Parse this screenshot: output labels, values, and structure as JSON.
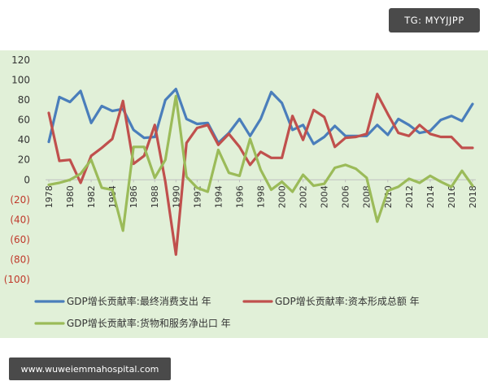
{
  "tag_label": "TG: MYYJJPP",
  "watermark_text": "www.wuweiemmahospital.com",
  "colors": {
    "panel_bg": "#e1f0d8",
    "negative_tick": "#c0392b",
    "positive_tick": "#333333",
    "series": [
      "#4a7ebb",
      "#c0504d",
      "#9bbb59"
    ]
  },
  "chart_data": {
    "type": "line",
    "title": "",
    "xlabel": "",
    "ylabel": "",
    "ylim": [
      -100,
      120
    ],
    "grid": false,
    "legend_position": "bottom",
    "y_ticks": [
      {
        "value": 120,
        "label": "120"
      },
      {
        "value": 100,
        "label": "100"
      },
      {
        "value": 80,
        "label": "80"
      },
      {
        "value": 60,
        "label": "60"
      },
      {
        "value": 40,
        "label": "40"
      },
      {
        "value": 20,
        "label": "20"
      },
      {
        "value": 0,
        "label": "0"
      },
      {
        "value": -20,
        "label": "(20)"
      },
      {
        "value": -40,
        "label": "(40)"
      },
      {
        "value": -60,
        "label": "(60)"
      },
      {
        "value": -80,
        "label": "(80)"
      },
      {
        "value": -100,
        "label": "(100)"
      }
    ],
    "x": [
      1978,
      1979,
      1980,
      1981,
      1982,
      1983,
      1984,
      1985,
      1986,
      1987,
      1988,
      1989,
      1990,
      1991,
      1992,
      1993,
      1994,
      1995,
      1996,
      1997,
      1998,
      1999,
      2000,
      2001,
      2002,
      2003,
      2004,
      2005,
      2006,
      2007,
      2008,
      2009,
      2010,
      2011,
      2012,
      2013,
      2014,
      2015,
      2016,
      2017,
      2018
    ],
    "x_tick_labels": [
      "1978",
      "1980",
      "1982",
      "1984",
      "1986",
      "1988",
      "1990",
      "1992",
      "1994",
      "1996",
      "1998",
      "2000",
      "2002",
      "2004",
      "2006",
      "2008",
      "2010",
      "2012",
      "2014",
      "2016",
      "2018"
    ],
    "series": [
      {
        "name": "GDP增长贡献率:最终消费支出 年",
        "values": [
          38,
          83,
          78,
          89,
          57,
          74,
          69,
          71,
          50,
          42,
          43,
          80,
          91,
          61,
          56,
          57,
          37,
          47,
          61,
          44,
          61,
          88,
          77,
          50,
          55,
          36,
          43,
          54,
          44,
          44,
          44,
          55,
          45,
          61,
          55,
          47,
          49,
          60,
          64,
          59,
          76
        ]
      },
      {
        "name": "GDP增长贡献率:资本形成总额 年",
        "values": [
          67,
          19,
          20,
          -3,
          24,
          32,
          41,
          79,
          16,
          24,
          55,
          -2,
          -75,
          37,
          52,
          55,
          35,
          46,
          33,
          15,
          28,
          22,
          22,
          64,
          40,
          70,
          63,
          33,
          42,
          43,
          46,
          86,
          66,
          47,
          44,
          55,
          46,
          43,
          43,
          32,
          32
        ]
      },
      {
        "name": "GDP增长贡献率:货物和服务净出口 年",
        "values": [
          -5,
          -3,
          0,
          6,
          20,
          -8,
          -10,
          -51,
          33,
          33,
          2,
          20,
          84,
          3,
          -8,
          -12,
          30,
          7,
          4,
          41,
          10,
          -10,
          -2,
          -12,
          5,
          -6,
          -4,
          12,
          15,
          11,
          2,
          -42,
          -11,
          -7,
          1,
          -3,
          4,
          -2,
          -7,
          9,
          -6
        ]
      }
    ]
  }
}
